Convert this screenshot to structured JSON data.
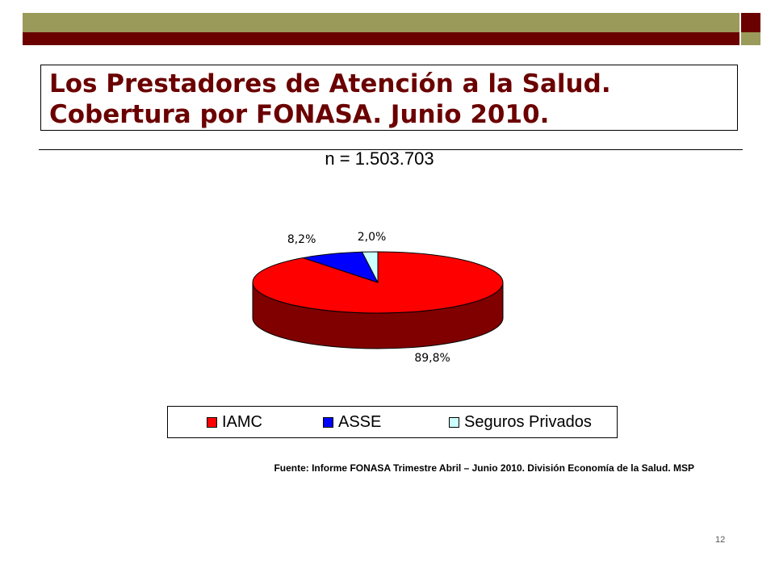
{
  "header": {
    "title_line1": "Los Prestadores de Atención a la Salud.",
    "title_line2": "Cobertura por FONASA. Junio 2010.",
    "title_color": "#6b0000"
  },
  "theme": {
    "band_olive": "#9a9a5a",
    "band_dark_red": "#6b0000"
  },
  "chart_data": {
    "type": "pie",
    "title": "",
    "subtitle": "n = 1.503.703",
    "slices": [
      {
        "name": "IAMC",
        "value": 89.8,
        "label": "89,8%",
        "color": "#ff0000",
        "side_color": "#800000"
      },
      {
        "name": "ASSE",
        "value": 8.2,
        "label": "8,2%",
        "color": "#0000ff",
        "side_color": "#000080"
      },
      {
        "name": "Seguros Privados",
        "value": 2.0,
        "label": "2,0%",
        "color": "#ccffff",
        "side_color": "#669999"
      }
    ],
    "legend_position": "bottom",
    "three_d": true
  },
  "footer": {
    "source": "Fuente: Informe FONASA Trimestre Abril – Junio 2010. División Economía de la Salud. MSP",
    "page_number": "12"
  }
}
